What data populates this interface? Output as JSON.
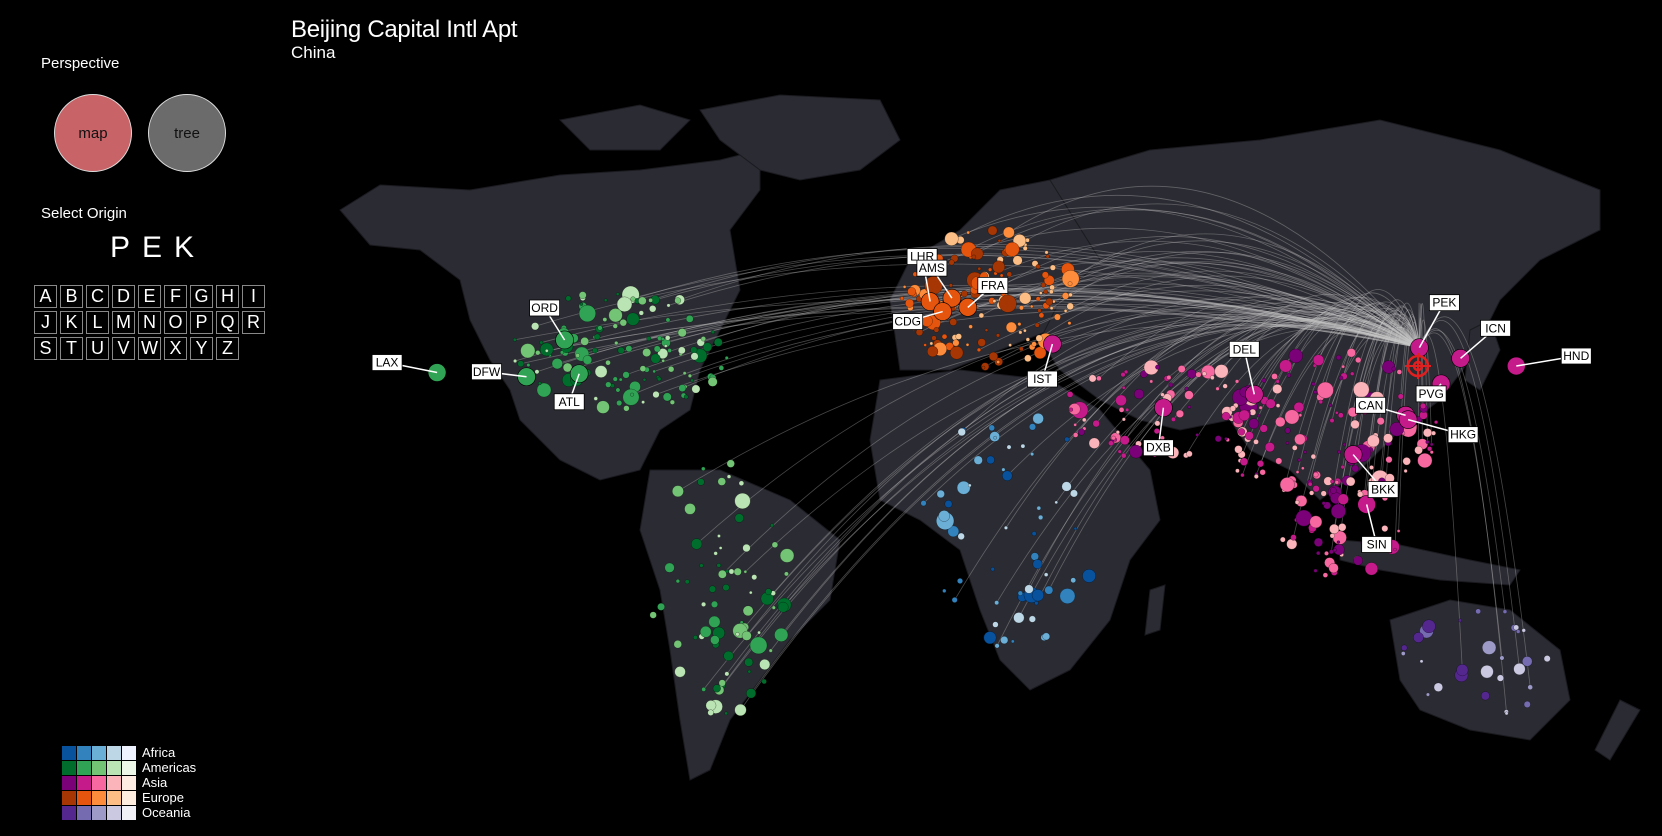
{
  "header": {
    "title": "Beijing Capital Intl Apt",
    "subtitle": "China"
  },
  "perspective": {
    "label": "Perspective",
    "options": [
      {
        "label": "map",
        "color": "#c86468",
        "selected": true
      },
      {
        "label": "tree",
        "color": "#6b6b6b",
        "selected": false
      }
    ]
  },
  "origin": {
    "label": "Select Origin",
    "code": "PEK",
    "letters": [
      "A",
      "B",
      "C",
      "D",
      "E",
      "F",
      "G",
      "H",
      "I",
      "J",
      "K",
      "L",
      "M",
      "N",
      "O",
      "P",
      "Q",
      "R",
      "S",
      "T",
      "U",
      "V",
      "W",
      "X",
      "Y",
      "Z"
    ]
  },
  "map": {
    "selected_airport": "PEK",
    "airports": [
      {
        "code": "ORD",
        "lon": -87.9,
        "lat": 41.98,
        "region": "Americas"
      },
      {
        "code": "LAX",
        "lon": -118.4,
        "lat": 33.94,
        "region": "Americas"
      },
      {
        "code": "DFW",
        "lon": -97.0,
        "lat": 32.9,
        "region": "Americas"
      },
      {
        "code": "ATL",
        "lon": -84.4,
        "lat": 33.64,
        "region": "Americas"
      },
      {
        "code": "LHR",
        "lon": -0.45,
        "lat": 51.47,
        "region": "Europe"
      },
      {
        "code": "AMS",
        "lon": 4.76,
        "lat": 52.31,
        "region": "Europe"
      },
      {
        "code": "FRA",
        "lon": 8.57,
        "lat": 50.03,
        "region": "Europe"
      },
      {
        "code": "CDG",
        "lon": 2.55,
        "lat": 49.0,
        "region": "Europe"
      },
      {
        "code": "IST",
        "lon": 28.81,
        "lat": 40.98,
        "region": "Asia"
      },
      {
        "code": "DXB",
        "lon": 55.36,
        "lat": 25.25,
        "region": "Asia"
      },
      {
        "code": "DEL",
        "lon": 77.1,
        "lat": 28.56,
        "region": "Asia"
      },
      {
        "code": "PEK",
        "lon": 116.6,
        "lat": 40.08,
        "region": "Asia"
      },
      {
        "code": "PVG",
        "lon": 121.8,
        "lat": 31.14,
        "region": "Asia"
      },
      {
        "code": "ICN",
        "lon": 126.45,
        "lat": 37.46,
        "region": "Asia"
      },
      {
        "code": "HND",
        "lon": 139.78,
        "lat": 35.55,
        "region": "Asia"
      },
      {
        "code": "CAN",
        "lon": 113.3,
        "lat": 23.39,
        "region": "Asia"
      },
      {
        "code": "HKG",
        "lon": 113.9,
        "lat": 22.31,
        "region": "Asia"
      },
      {
        "code": "BKK",
        "lon": 100.75,
        "lat": 13.69,
        "region": "Asia"
      },
      {
        "code": "SIN",
        "lon": 103.99,
        "lat": 1.36,
        "region": "Asia"
      }
    ]
  },
  "legend": [
    {
      "label": "Africa",
      "colors": [
        "#08519c",
        "#3182bd",
        "#6baed6",
        "#bdd7e7",
        "#eff3ff"
      ]
    },
    {
      "label": "Americas",
      "colors": [
        "#006d2c",
        "#31a354",
        "#74c476",
        "#bae4b3",
        "#edf8e9"
      ]
    },
    {
      "label": "Asia",
      "colors": [
        "#7a0177",
        "#c51b8a",
        "#f768a1",
        "#fbb4b9",
        "#feebe2"
      ]
    },
    {
      "label": "Europe",
      "colors": [
        "#a63603",
        "#e6550d",
        "#fd8d3c",
        "#fdbe85",
        "#feedde"
      ]
    },
    {
      "label": "Oceania",
      "colors": [
        "#54278f",
        "#756bb1",
        "#9e9ac8",
        "#cbc9e2",
        "#f2f0f7"
      ]
    }
  ]
}
